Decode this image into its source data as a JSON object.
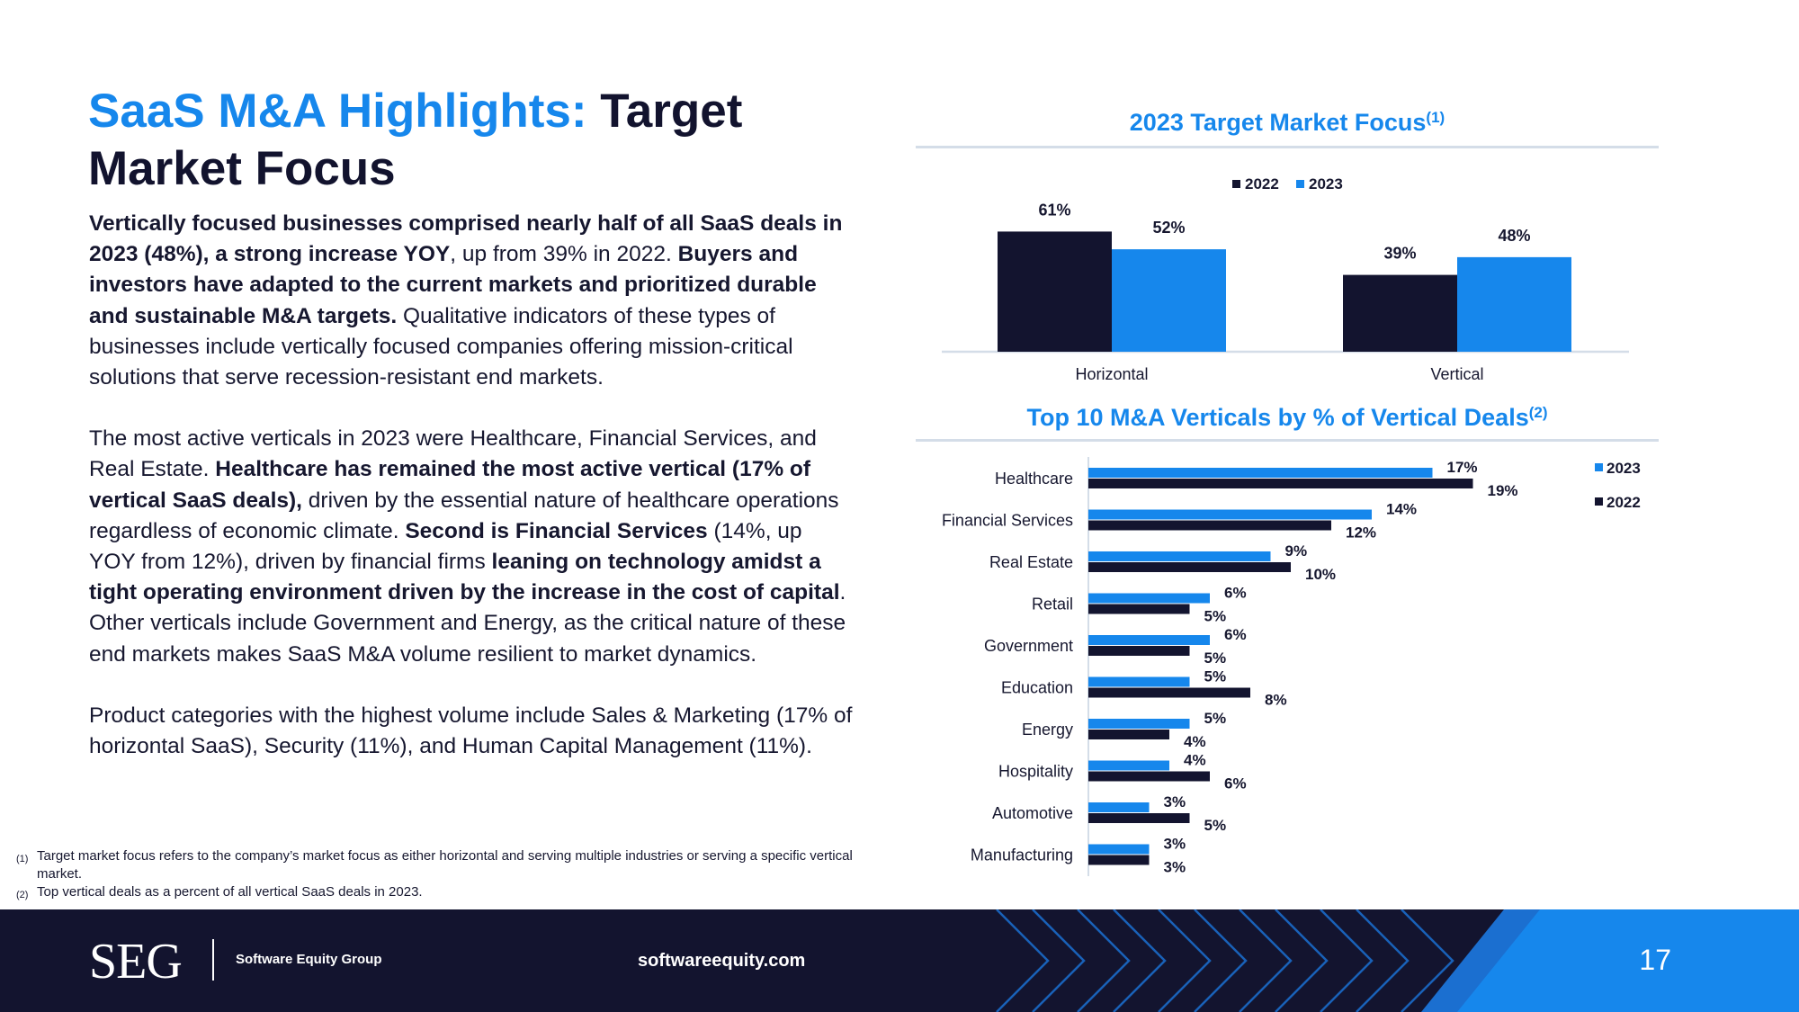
{
  "title": {
    "accent": "SaaS M&A Highlights:",
    "rest": "Target Market Focus"
  },
  "body": {
    "p1": [
      {
        "text": "Vertically focused businesses comprised nearly half of all SaaS deals in 2023 (48%), a strong increase YOY",
        "bold": true
      },
      {
        "text": ", up from 39% in 2022. ",
        "bold": false
      },
      {
        "text": "Buyers and investors have adapted to the current markets and prioritized durable and sustainable M&A targets.",
        "bold": true
      },
      {
        "text": " Qualitative indicators of these types of businesses include vertically focused companies offering mission-critical solutions that serve recession-resistant end markets.",
        "bold": false
      }
    ],
    "p2": [
      {
        "text": "The most active verticals in 2023 were Healthcare, Financial Services, and Real Estate. ",
        "bold": false
      },
      {
        "text": "Healthcare has remained the most active vertical (17% of vertical SaaS deals),",
        "bold": true
      },
      {
        "text": " driven by the essential nature of healthcare operations regardless of economic climate. ",
        "bold": false
      },
      {
        "text": "Second is Financial Services",
        "bold": true
      },
      {
        "text": " (14%, up YOY from 12%), driven by financial firms ",
        "bold": false
      },
      {
        "text": "leaning on technology amidst a tight operating environment driven by the increase in the cost of capital",
        "bold": true
      },
      {
        "text": ". Other verticals include Government and Energy, as the critical nature of these end markets makes SaaS M&A volume resilient to market dynamics.",
        "bold": false
      }
    ],
    "p3": [
      {
        "text": "Product categories with the highest volume include Sales & Marketing (17% of horizontal SaaS), Security (11%), and Human Capital Management (11%).",
        "bold": false
      }
    ]
  },
  "footnotes": [
    {
      "num": "(1)",
      "text": "Target market focus refers to the company’s market focus as either horizontal and serving multiple industries or serving a specific vertical market."
    },
    {
      "num": "(2)",
      "text": "Top vertical deals as a percent of all vertical SaaS deals in 2023."
    }
  ],
  "colors": {
    "series2022": "#13142f",
    "series2023": "#1687ec",
    "accent": "#1687ec"
  },
  "chart_data": [
    {
      "type": "bar",
      "title": "2023 Target Market Focus",
      "title_sup": "(1)",
      "categories": [
        "Horizontal",
        "Vertical"
      ],
      "series": [
        {
          "name": "2022",
          "values": [
            61,
            39
          ]
        },
        {
          "name": "2023",
          "values": [
            52,
            48
          ]
        }
      ],
      "value_suffix": "%",
      "ylim": [
        0,
        100
      ],
      "legend": "top-center"
    },
    {
      "type": "bar",
      "orientation": "horizontal",
      "title": "Top 10 M&A Verticals by % of Vertical Deals",
      "title_sup": "(2)",
      "categories": [
        "Healthcare",
        "Financial Services",
        "Real Estate",
        "Retail",
        "Government",
        "Education",
        "Energy",
        "Hospitality",
        "Automotive",
        "Manufacturing"
      ],
      "series": [
        {
          "name": "2023",
          "values": [
            17,
            14,
            9,
            6,
            6,
            5,
            5,
            4,
            3,
            3
          ]
        },
        {
          "name": "2022",
          "values": [
            19,
            12,
            10,
            5,
            5,
            8,
            4,
            6,
            5,
            3
          ]
        }
      ],
      "value_suffix": "%",
      "xlim": [
        0,
        20
      ],
      "legend": "right"
    }
  ],
  "footer": {
    "logo": "SEG",
    "company": "Software Equity Group",
    "website": "softwareequity.com",
    "page": "17"
  }
}
